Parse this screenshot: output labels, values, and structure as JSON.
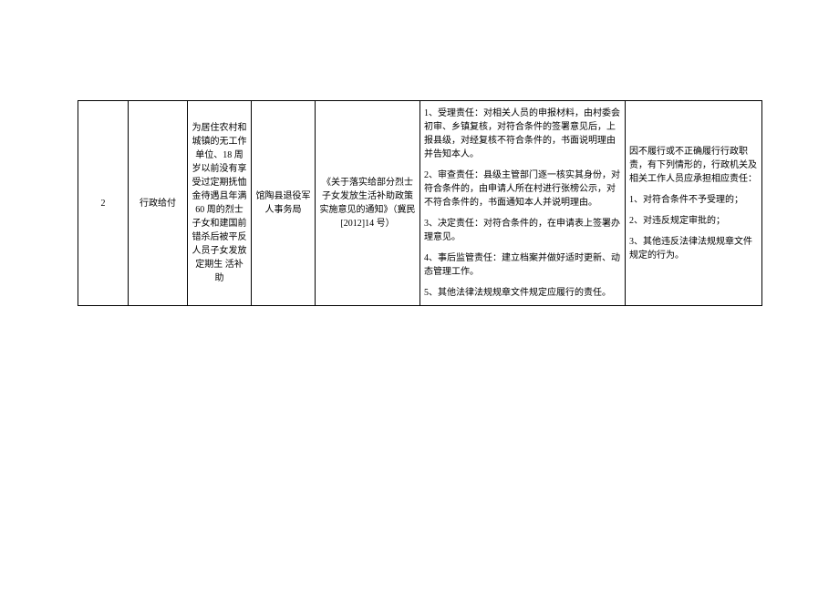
{
  "row": {
    "num": "2",
    "type": "行政给付",
    "matter": "为居住农村和城镇的无工作单位、18 周岁以前没有享受过定期抚恤金待遇且年满 60 周的烈士子女和建国前错杀后被平反人员子女发放定期生\n活补助",
    "dept": "馆陶县退役军人事务局",
    "basis": "《关于落实给部分烈士子女发放生活补助政策实施意见的通知》（冀民[2012]14 号）",
    "duty": {
      "p1": "1、受理责任：对相关人员的申报材料，由村委会初审、乡镇复核，对符合条件的签署意见后，上报县级，对经复核不符合条件的，书面说明理由并告知本人。",
      "p2": "2、审查责任：县级主管部门逐一核实其身份，对符合条件的，由申请人所在村进行张榜公示，对不符合条件的，书面通知本人并说明理由。",
      "p3": "3、决定责任：对符合条件的，在申请表上签署办理意见。",
      "p4": "4、事后监管责任：建立档案并做好适时更新、动态管理工作。",
      "p5": "5、其他法律法规规章文件规定应履行的责任。"
    },
    "accountability": {
      "p0": "因不履行或不正确履行行政职责，有下列情形的，行政机关及相关工作人员应承担相应责任：",
      "p1": "1、对符合条件不予受理的；",
      "p2": "2、对违反规定审批的；",
      "p3": "3、其他违反法律法规规章文件规定的行为。"
    }
  }
}
